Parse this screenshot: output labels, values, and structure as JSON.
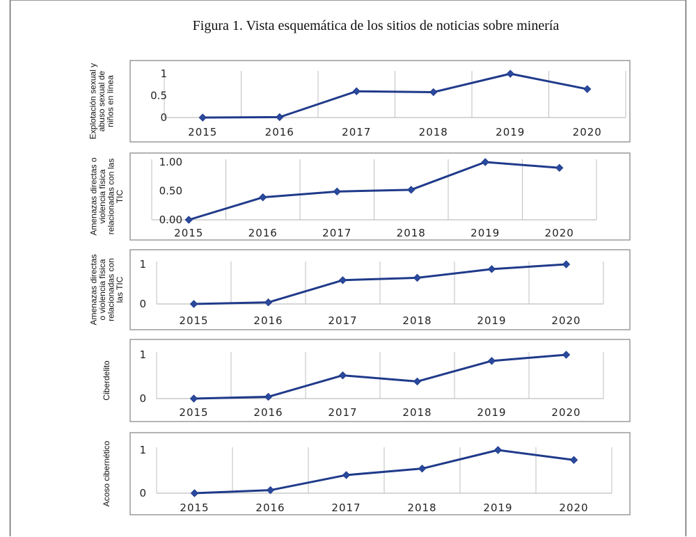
{
  "figure": {
    "title": "Figura 1. Vista esquemática de los sitios de noticias sobre minería"
  },
  "style": {
    "line_color": "#1f3a8a",
    "marker_color": "#2a4a9e",
    "grid_color": "#bfbfbf",
    "frame_color": "#9a9a9a"
  },
  "chart_data": [
    {
      "type": "line",
      "ylabel": [
        "Explotación sexual y",
        "abuso sexual de",
        "niños en línea"
      ],
      "categories": [
        "2015",
        "2016",
        "2017",
        "2018",
        "2019",
        "2020"
      ],
      "values": [
        0,
        0.01,
        0.6,
        0.58,
        1.0,
        0.65
      ],
      "ylim": [
        0,
        1
      ],
      "yticks": [
        0,
        0.5,
        1
      ],
      "ytick_labels": [
        "0",
        "0.5",
        "1"
      ]
    },
    {
      "type": "line",
      "ylabel": [
        "Amenazas directas o",
        "violencia física",
        "relacionadas con las",
        "TIC"
      ],
      "categories": [
        "2015",
        "2016",
        "2017",
        "2018",
        "2019",
        "2020"
      ],
      "values": [
        0,
        0.39,
        0.49,
        0.52,
        1.0,
        0.9
      ],
      "ylim": [
        0,
        1
      ],
      "yticks": [
        0,
        0.5,
        1
      ],
      "ytick_labels": [
        "0.00",
        "0.50",
        "1.00"
      ]
    },
    {
      "type": "line",
      "ylabel": [
        "Amenazas directas",
        "o violencia física",
        "relacionadas con",
        "las TIC"
      ],
      "categories": [
        "2015",
        "2016",
        "2017",
        "2018",
        "2019",
        "2020"
      ],
      "values": [
        0,
        0.04,
        0.6,
        0.66,
        0.88,
        1.0
      ],
      "ylim": [
        0,
        1
      ],
      "yticks": [
        0,
        1
      ],
      "ytick_labels": [
        "0",
        "1"
      ]
    },
    {
      "type": "line",
      "ylabel": [
        "Ciberdelito"
      ],
      "categories": [
        "2015",
        "2016",
        "2017",
        "2018",
        "2019",
        "2020"
      ],
      "values": [
        0,
        0.04,
        0.53,
        0.39,
        0.86,
        1.0
      ],
      "ylim": [
        0,
        1
      ],
      "yticks": [
        0,
        1
      ],
      "ytick_labels": [
        "0",
        "1"
      ]
    },
    {
      "type": "line",
      "ylabel": [
        "Acoso cibernético"
      ],
      "categories": [
        "2015",
        "2016",
        "2017",
        "2018",
        "2019",
        "2020"
      ],
      "values": [
        0,
        0.07,
        0.42,
        0.57,
        1.0,
        0.77
      ],
      "ylim": [
        0,
        1
      ],
      "yticks": [
        0,
        1
      ],
      "ytick_labels": [
        "0",
        "1"
      ]
    }
  ]
}
